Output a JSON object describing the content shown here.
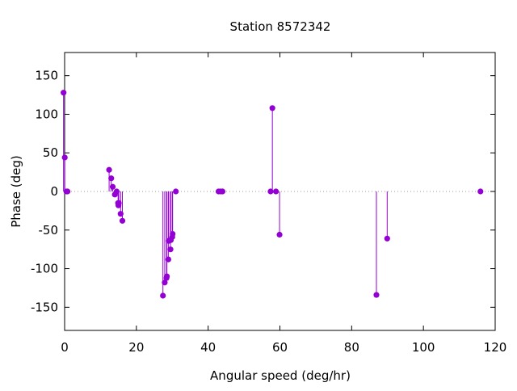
{
  "chart_data": {
    "type": "scatter",
    "style": "impulses-with-points",
    "title": "Station 8572342",
    "xlabel": "Angular speed (deg/hr)",
    "ylabel": "Phase (deg)",
    "xlim": [
      0,
      120
    ],
    "ylim": [
      -180,
      180
    ],
    "xticks": [
      0,
      20,
      40,
      60,
      80,
      100,
      120
    ],
    "yticks": [
      -150,
      -100,
      -50,
      0,
      50,
      100,
      150
    ],
    "zero_line": "dotted",
    "grid": false,
    "legend": "none",
    "color": "#9400d3",
    "series": [
      {
        "x": [
          -0.3,
          0.04,
          0.5,
          0.8,
          12.4,
          13.0,
          13.4,
          14.0,
          14.5,
          14.9,
          15.0,
          15.1,
          15.6,
          16.1,
          27.4,
          27.9,
          28.4,
          28.5,
          28.9,
          29.0,
          29.5,
          29.6,
          30.0,
          30.1,
          31.0,
          42.9,
          43.5,
          44.0,
          57.4,
          57.9,
          58.9,
          59.9,
          86.9,
          89.9,
          115.9
        ],
        "y": [
          128,
          44,
          0,
          0,
          28,
          17,
          6,
          -4,
          0,
          -15,
          -18,
          -15,
          -29,
          -38,
          -135,
          -118,
          -112,
          -110,
          -88,
          -64,
          -75,
          -63,
          -59,
          -55,
          0,
          0,
          0,
          0,
          0,
          108,
          0,
          -56,
          -134,
          -61,
          0
        ]
      }
    ]
  }
}
